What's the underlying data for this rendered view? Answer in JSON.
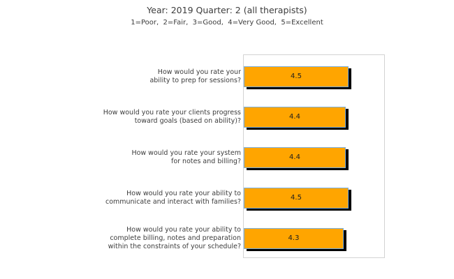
{
  "page": {
    "title": "Year: 2019 Quarter: 2 (all therapists)",
    "subtitle": "1=Poor,  2=Fair,  3=Good,  4=Very Good,  5=Excellent"
  },
  "chart_data": {
    "type": "bar",
    "orientation": "horizontal",
    "title": "Year: 2019 Quarter: 2 (all therapists)",
    "subtitle": "1=Poor,  2=Fair,  3=Good,  4=Very Good,  5=Excellent",
    "scale_legend": "1=Poor, 2=Fair, 3=Good, 4=Very Good, 5=Excellent",
    "categories": [
      "How would you rate your ability to prep for sessions?",
      "How would you rate your clients progress toward goals (based on ability)?",
      "How would you rate your system for notes and billing?",
      "How would you rate your ability to communicate and interact with families?",
      "How would you rate your ability to complete billing, notes and preparation within the constraints of your schedule?"
    ],
    "category_lines": [
      [
        "How would you rate your",
        "ability to prep for sessions?"
      ],
      [
        "How would you rate your clients progress",
        "toward goals (based on ability)?"
      ],
      [
        "How would you rate your system",
        "for notes and billing?"
      ],
      [
        "How would you rate your ability to",
        "communicate and interact with families?"
      ],
      [
        "How would you rate your ability to",
        "complete billing, notes and preparation",
        "within the constraints of your schedule?"
      ]
    ],
    "values": [
      4.5,
      4.4,
      4.4,
      4.5,
      4.3
    ],
    "value_labels": [
      "4.5",
      "4.4",
      "4.4",
      "4.5",
      "4.3"
    ],
    "xlim": [
      0,
      6.1
    ],
    "grid": false,
    "legend": null,
    "colors": {
      "bar_fill": "#FFA500",
      "bar_border": "#79AFE0",
      "bar_shadow": "#000000",
      "plot_border": "#D3D3D3",
      "text": "#3C3C3C",
      "value_text": "#1F1F1F",
      "background": "#FFFFFF"
    }
  }
}
